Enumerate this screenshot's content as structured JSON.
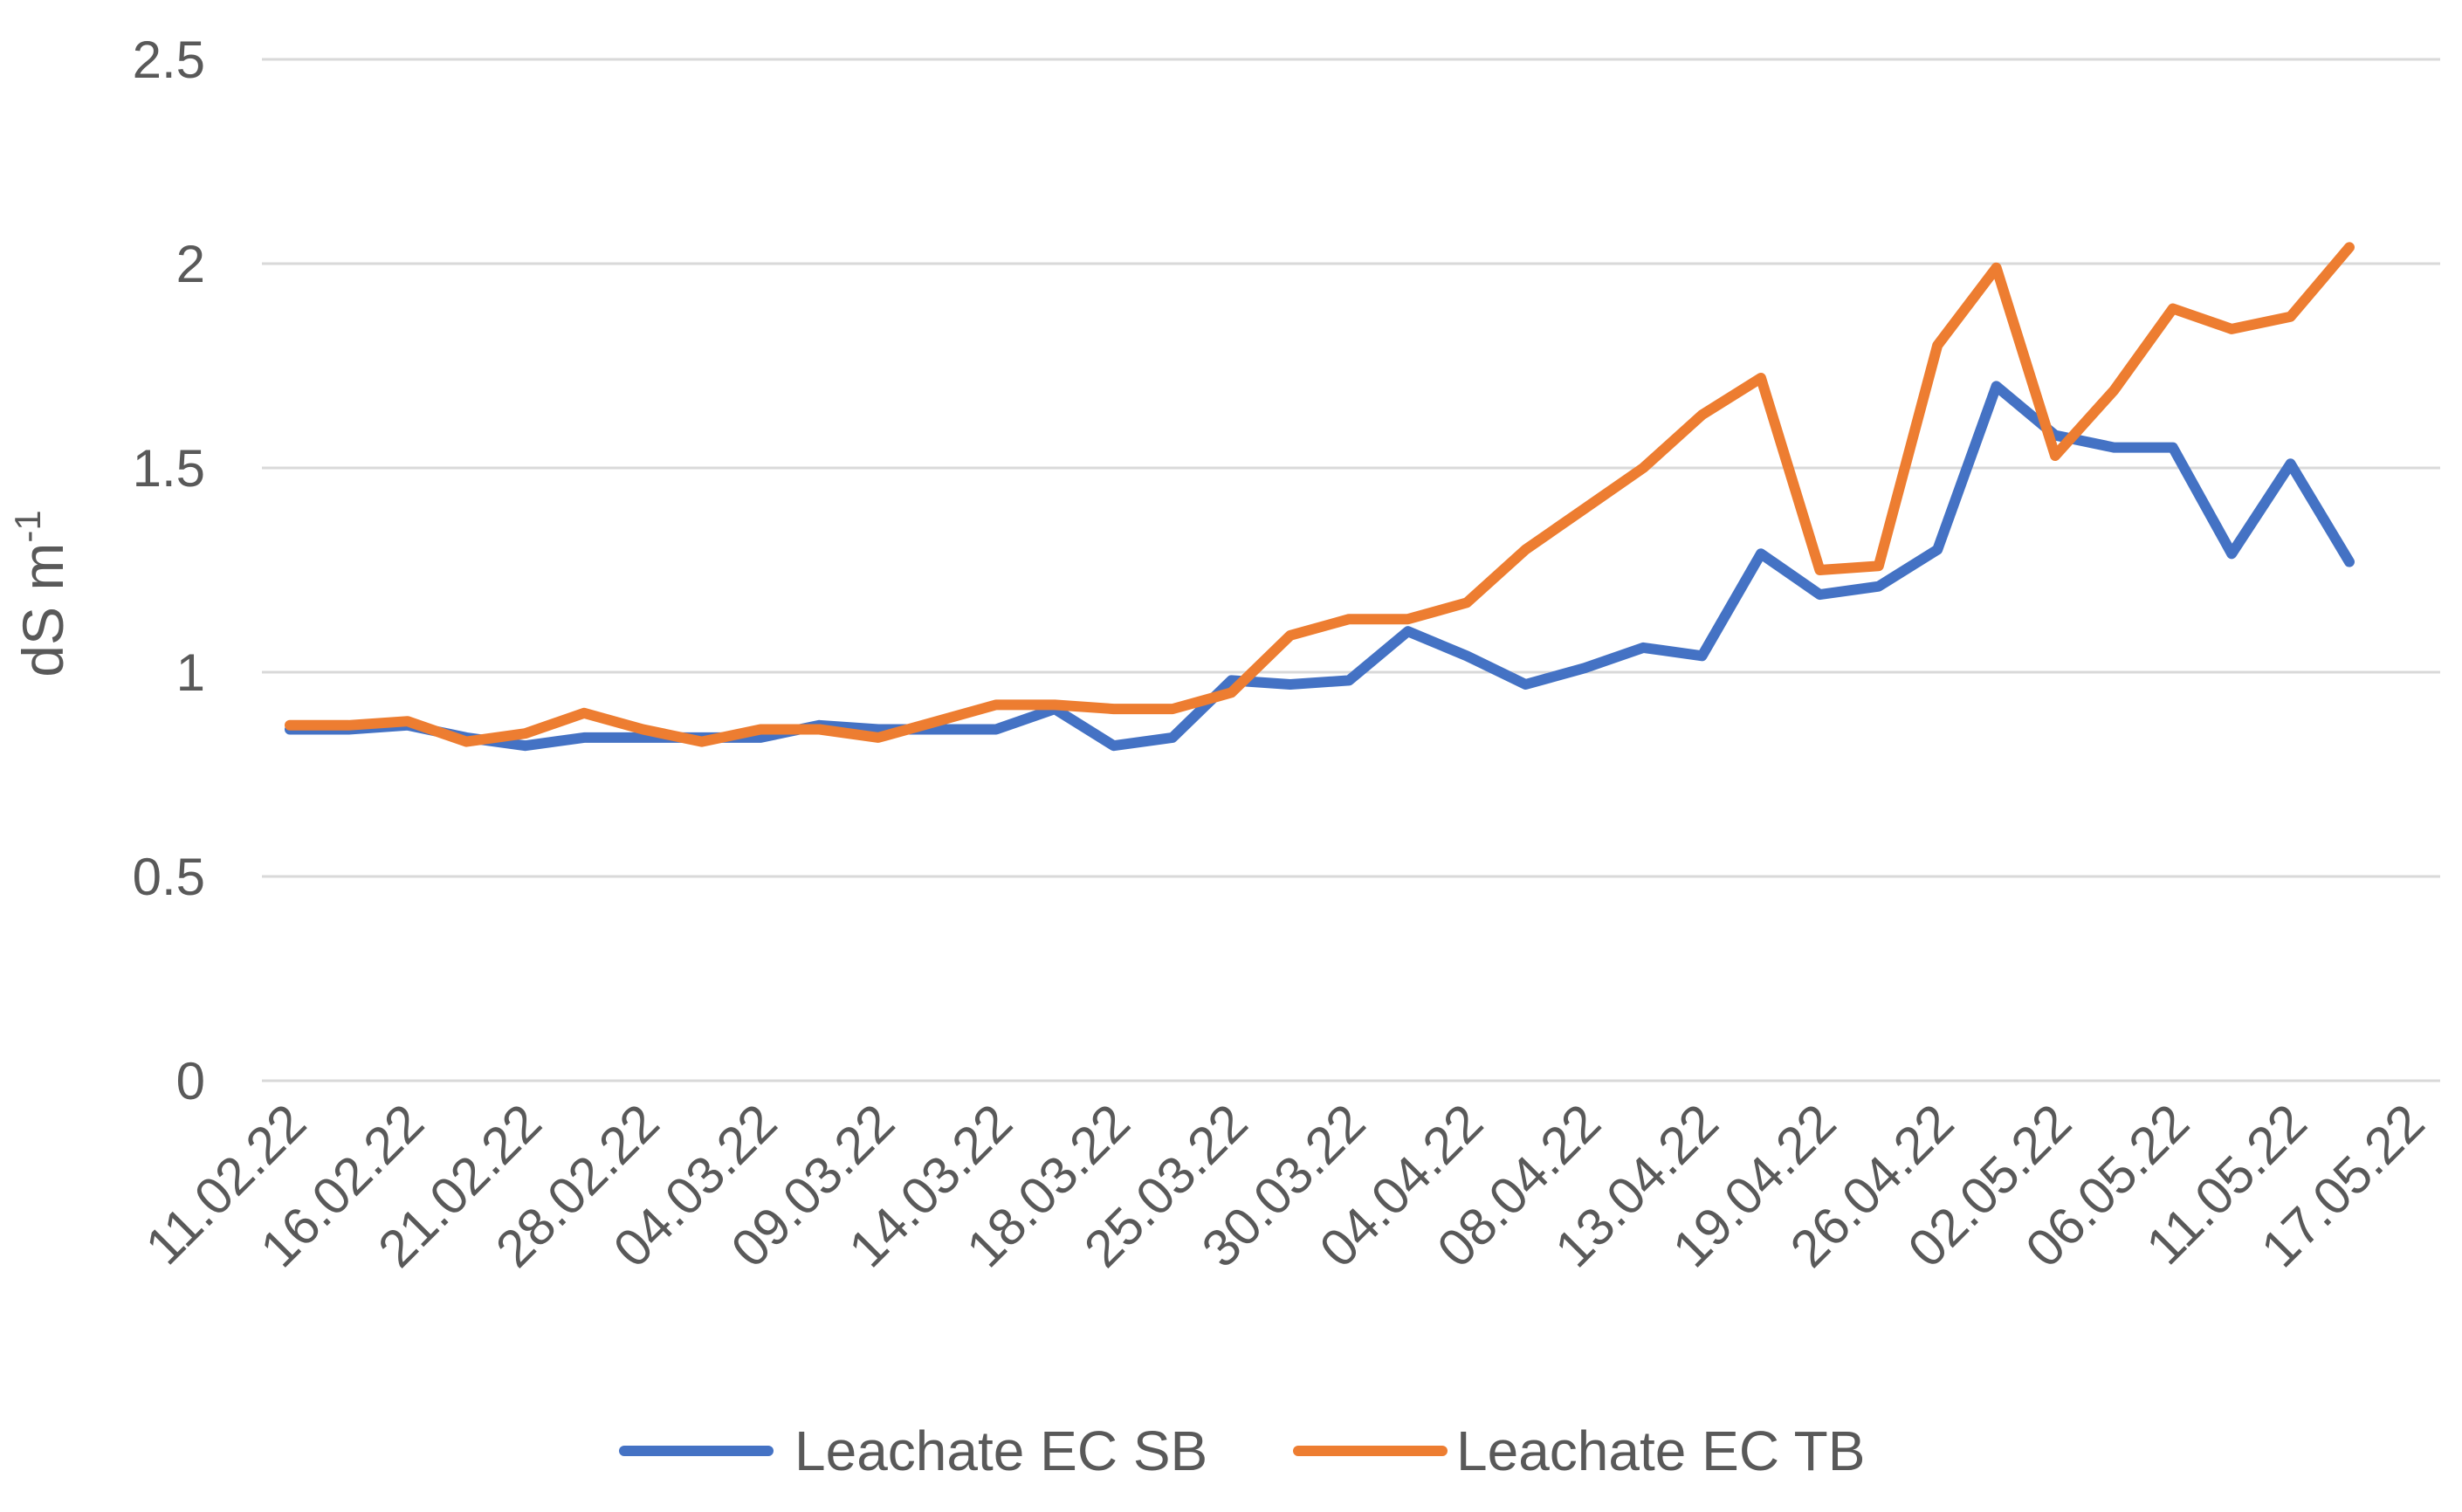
{
  "chart_data": {
    "type": "line",
    "title": "",
    "xlabel": "",
    "ylabel": "dS m",
    "ylabel_superscript": "-1",
    "ylim": [
      0,
      2.5
    ],
    "yticks": [
      "0",
      "0.5",
      "1",
      "1.5",
      "2",
      "2.5"
    ],
    "grid": true,
    "legend_position": "bottom",
    "x_tick_labels": [
      "11.02.22",
      "16.02.22",
      "21.02.22",
      "28.02.22",
      "04.03.22",
      "09.03.22",
      "14.03.22",
      "18.03.22",
      "25.03.22",
      "30.03.22",
      "04.04.22",
      "08.04.22",
      "13.04.22",
      "19.04.22",
      "26.04.22",
      "02.05.22",
      "06.05.22",
      "11.05.22",
      "17.05.22"
    ],
    "point_count": 36,
    "series": [
      {
        "name": "Leachate EC SB",
        "color": "#4472C4",
        "values": [
          0.86,
          0.86,
          0.87,
          0.84,
          0.82,
          0.84,
          0.84,
          0.84,
          0.84,
          0.87,
          0.86,
          0.86,
          0.86,
          0.91,
          0.82,
          0.84,
          0.98,
          0.97,
          0.98,
          1.1,
          1.04,
          0.97,
          1.01,
          1.06,
          1.04,
          1.29,
          1.19,
          1.21,
          1.3,
          1.7,
          1.58,
          1.55,
          1.55,
          1.29,
          1.51,
          1.27
        ]
      },
      {
        "name": "Leachate EC TB",
        "color": "#ED7D31",
        "values": [
          0.87,
          0.87,
          0.88,
          0.83,
          0.85,
          0.9,
          0.86,
          0.83,
          0.86,
          0.86,
          0.84,
          0.88,
          0.92,
          0.92,
          0.91,
          0.91,
          0.95,
          1.09,
          1.13,
          1.13,
          1.17,
          1.3,
          1.4,
          1.5,
          1.63,
          1.72,
          1.25,
          1.26,
          1.8,
          1.99,
          1.53,
          1.69,
          1.89,
          1.84,
          1.87,
          2.04
        ]
      }
    ]
  }
}
